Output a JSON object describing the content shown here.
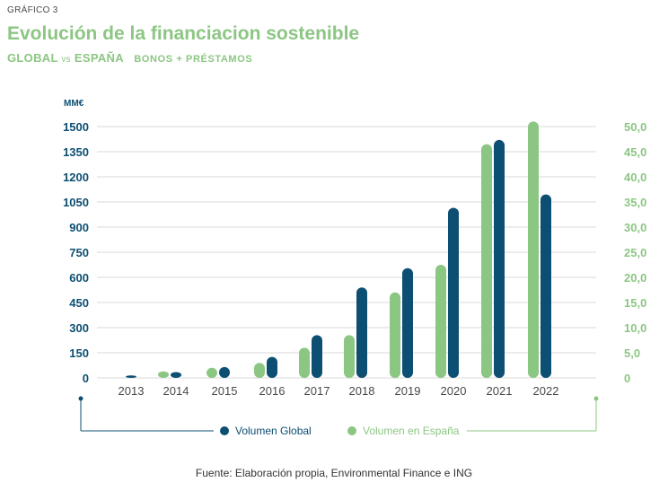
{
  "header": {
    "figure_label": "GRÁFICO 3",
    "title": "Evolución de la financiacion sostenible",
    "subtitle_a": "GLOBAL",
    "subtitle_vs": "vs",
    "subtitle_b": "ESPAÑA",
    "subtitle_c": "BONOS + PRÉSTAMOS"
  },
  "chart_data": {
    "type": "bar",
    "title": "Evolución de la financiacion sostenible",
    "categories": [
      "2013",
      "2014",
      "2015",
      "2016",
      "2017",
      "2018",
      "2019",
      "2020",
      "2021",
      "2022"
    ],
    "series": [
      {
        "name": "Volumen en España",
        "axis": "right",
        "color": "#8cc683",
        "values": [
          0,
          1.3,
          2.0,
          3.0,
          6.0,
          8.5,
          17,
          22.5,
          46.5,
          51
        ]
      },
      {
        "name": "Volumen Global",
        "axis": "left",
        "color": "#0d4f72",
        "values": [
          15,
          35,
          65,
          125,
          255,
          540,
          655,
          1015,
          1420,
          1095
        ]
      }
    ],
    "left_axis": {
      "label": "MM€",
      "min": 0,
      "max": 1500,
      "ticks": [
        "0",
        "150",
        "300",
        "450",
        "600",
        "750",
        "900",
        "1050",
        "1200",
        "1350",
        "1500"
      ]
    },
    "right_axis": {
      "min": 0,
      "max": 50,
      "ticks": [
        "0",
        "5,0",
        "10,0",
        "15,0",
        "20,0",
        "25,0",
        "30,0",
        "35,0",
        "40,0",
        "45,0",
        "50,0"
      ]
    },
    "legend": {
      "global_label": "Volumen Global",
      "spain_label": "Volumen en España",
      "position": "bottom"
    }
  },
  "footer": {
    "source": "Fuente: Elaboración propia, Environmental Finance e ING"
  }
}
